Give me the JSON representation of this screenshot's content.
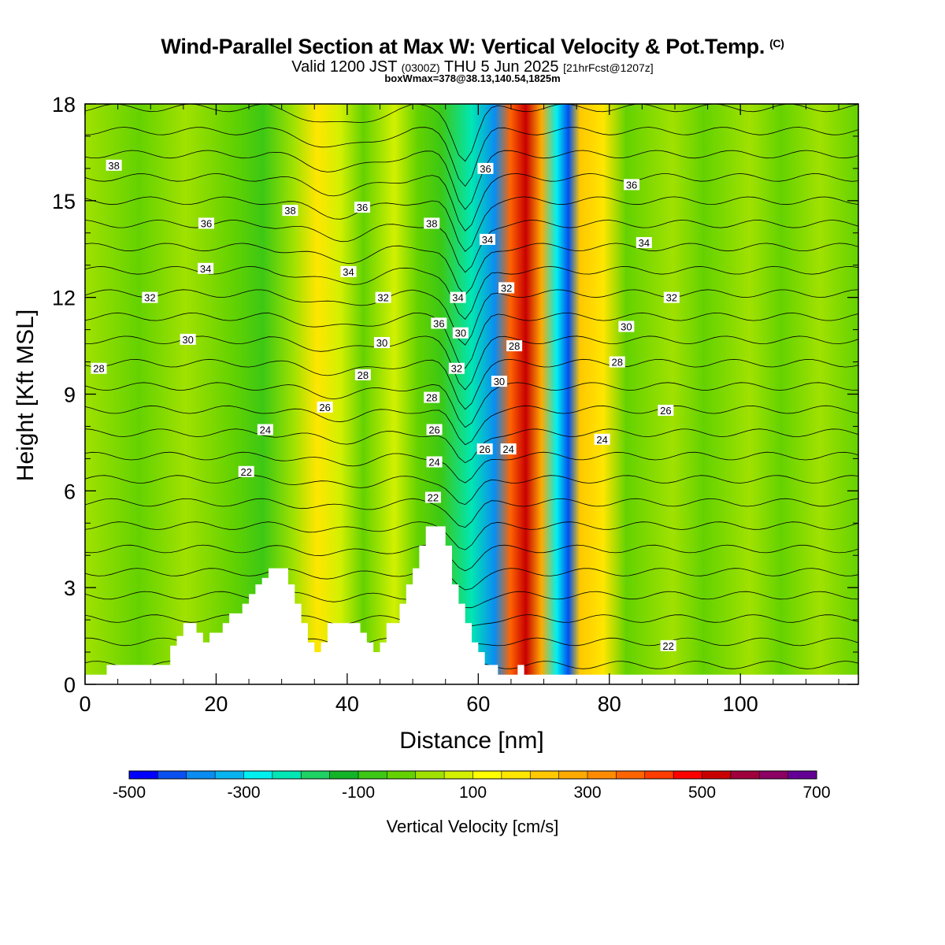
{
  "header": {
    "title": "Wind-Parallel Section at Max W: Vertical Velocity & Pot.Temp.",
    "title_mark": "(C)",
    "valid_line_a": "Valid 1200 JST",
    "valid_line_z": "(0300Z)",
    "valid_line_b": "THU 5 Jun 2025",
    "forecast": "[21hrFcst@1207z]",
    "box_line": "boxWmax=378@38.13,140.54,1825m"
  },
  "chart_data": {
    "type": "heatmap",
    "xlabel": "Distance [nm]",
    "ylabel": "Height [Kft MSL]",
    "xlim": [
      0,
      118
    ],
    "ylim": [
      0,
      18
    ],
    "x_ticks": [
      0,
      20,
      40,
      60,
      80,
      100
    ],
    "y_ticks": [
      0,
      3,
      6,
      9,
      12,
      15,
      18
    ],
    "colorbar": {
      "label": "Vertical Velocity [cm/s]",
      "min": -500,
      "max": 700,
      "step": 50,
      "tick_labels": [
        "-500",
        "-300",
        "-100",
        "100",
        "300",
        "500",
        "700"
      ],
      "colors": [
        "#0000ff",
        "#0a50f0",
        "#0a8cf0",
        "#08b4f0",
        "#00f0f0",
        "#00e6b4",
        "#1ed264",
        "#14b428",
        "#3cc814",
        "#64d200",
        "#a0e100",
        "#d2f000",
        "#ffff00",
        "#ffe600",
        "#ffc800",
        "#ffaa00",
        "#ff8c00",
        "#ff6400",
        "#ff3c00",
        "#ff0000",
        "#c80000",
        "#a0003c",
        "#8c0064",
        "#640096"
      ]
    },
    "contour_label": "Potential temperature (°C)",
    "contour_labels_shown": [
      {
        "x": 4.4,
        "y": 16.1,
        "v": "38"
      },
      {
        "x": 18.5,
        "y": 14.3,
        "v": "36"
      },
      {
        "x": 18.4,
        "y": 12.9,
        "v": "34"
      },
      {
        "x": 9.9,
        "y": 12.0,
        "v": "32"
      },
      {
        "x": 15.7,
        "y": 10.7,
        "v": "30"
      },
      {
        "x": 2.1,
        "y": 9.8,
        "v": "28"
      },
      {
        "x": 31.3,
        "y": 14.7,
        "v": "38"
      },
      {
        "x": 42.3,
        "y": 14.8,
        "v": "36"
      },
      {
        "x": 40.2,
        "y": 12.8,
        "v": "34"
      },
      {
        "x": 45.5,
        "y": 12.0,
        "v": "32"
      },
      {
        "x": 45.3,
        "y": 10.6,
        "v": "30"
      },
      {
        "x": 42.4,
        "y": 9.6,
        "v": "28"
      },
      {
        "x": 36.6,
        "y": 8.6,
        "v": "26"
      },
      {
        "x": 27.5,
        "y": 7.9,
        "v": "24"
      },
      {
        "x": 24.6,
        "y": 6.6,
        "v": "22"
      },
      {
        "x": 52.9,
        "y": 14.3,
        "v": "38"
      },
      {
        "x": 54.0,
        "y": 11.2,
        "v": "36"
      },
      {
        "x": 52.9,
        "y": 8.9,
        "v": "28"
      },
      {
        "x": 53.3,
        "y": 7.9,
        "v": "26"
      },
      {
        "x": 53.3,
        "y": 6.9,
        "v": "24"
      },
      {
        "x": 53.1,
        "y": 5.8,
        "v": "22"
      },
      {
        "x": 56.9,
        "y": 12.0,
        "v": "34"
      },
      {
        "x": 57.3,
        "y": 10.9,
        "v": "30"
      },
      {
        "x": 56.7,
        "y": 9.8,
        "v": "32"
      },
      {
        "x": 61.1,
        "y": 16.0,
        "v": "36"
      },
      {
        "x": 61.4,
        "y": 13.8,
        "v": "34"
      },
      {
        "x": 64.3,
        "y": 12.3,
        "v": "32"
      },
      {
        "x": 65.5,
        "y": 10.5,
        "v": "28"
      },
      {
        "x": 63.2,
        "y": 9.4,
        "v": "30"
      },
      {
        "x": 61.0,
        "y": 7.3,
        "v": "26"
      },
      {
        "x": 64.6,
        "y": 7.3,
        "v": "24"
      },
      {
        "x": 83.4,
        "y": 15.5,
        "v": "36"
      },
      {
        "x": 85.3,
        "y": 13.7,
        "v": "34"
      },
      {
        "x": 89.5,
        "y": 12.0,
        "v": "32"
      },
      {
        "x": 82.6,
        "y": 11.1,
        "v": "30"
      },
      {
        "x": 81.2,
        "y": 10.0,
        "v": "28"
      },
      {
        "x": 88.6,
        "y": 8.5,
        "v": "26"
      },
      {
        "x": 78.9,
        "y": 7.6,
        "v": "24"
      },
      {
        "x": 89.0,
        "y": 1.2,
        "v": "22"
      }
    ],
    "terrain_kft": [
      [
        0,
        0.3
      ],
      [
        3.3,
        0.3
      ],
      [
        3.3,
        0.6
      ],
      [
        13,
        0.6
      ],
      [
        13,
        1.2
      ],
      [
        14,
        1.2
      ],
      [
        14,
        1.5
      ],
      [
        15,
        1.5
      ],
      [
        15,
        1.9
      ],
      [
        17,
        1.9
      ],
      [
        17,
        1.6
      ],
      [
        18,
        1.6
      ],
      [
        18,
        1.3
      ],
      [
        19,
        1.3
      ],
      [
        19,
        1.6
      ],
      [
        21,
        1.6
      ],
      [
        21,
        1.9
      ],
      [
        22,
        1.9
      ],
      [
        22,
        2.2
      ],
      [
        24,
        2.2
      ],
      [
        24,
        2.5
      ],
      [
        25,
        2.5
      ],
      [
        25,
        2.8
      ],
      [
        26,
        2.8
      ],
      [
        26,
        3.1
      ],
      [
        27,
        3.1
      ],
      [
        27,
        3.3
      ],
      [
        28,
        3.3
      ],
      [
        28,
        3.6
      ],
      [
        31,
        3.6
      ],
      [
        31,
        3.1
      ],
      [
        32,
        3.1
      ],
      [
        32,
        2.5
      ],
      [
        33,
        2.5
      ],
      [
        33,
        1.9
      ],
      [
        34,
        1.9
      ],
      [
        34,
        1.3
      ],
      [
        35,
        1.3
      ],
      [
        35,
        1.0
      ],
      [
        36,
        1.0
      ],
      [
        36,
        1.3
      ],
      [
        37,
        1.3
      ],
      [
        37,
        1.9
      ],
      [
        42,
        1.9
      ],
      [
        42,
        1.6
      ],
      [
        43,
        1.6
      ],
      [
        43,
        1.3
      ],
      [
        44,
        1.3
      ],
      [
        44,
        1.0
      ],
      [
        45,
        1.0
      ],
      [
        45,
        1.3
      ],
      [
        46,
        1.3
      ],
      [
        46,
        1.9
      ],
      [
        48,
        1.9
      ],
      [
        48,
        2.5
      ],
      [
        49,
        2.5
      ],
      [
        49,
        3.1
      ],
      [
        50,
        3.1
      ],
      [
        50,
        3.6
      ],
      [
        51,
        3.6
      ],
      [
        51,
        4.3
      ],
      [
        52,
        4.3
      ],
      [
        52,
        4.9
      ],
      [
        55,
        4.9
      ],
      [
        55,
        4.3
      ],
      [
        56,
        4.3
      ],
      [
        56,
        3.1
      ],
      [
        57,
        3.1
      ],
      [
        57,
        2.5
      ],
      [
        58,
        2.5
      ],
      [
        58,
        1.9
      ],
      [
        59,
        1.9
      ],
      [
        59,
        1.3
      ],
      [
        60,
        1.3
      ],
      [
        60,
        1.0
      ],
      [
        61,
        1.0
      ],
      [
        61,
        0.6
      ],
      [
        63,
        0.6
      ],
      [
        63,
        0.3
      ],
      [
        66,
        0.3
      ],
      [
        66,
        0.6
      ],
      [
        67,
        0.6
      ],
      [
        67,
        0.3
      ],
      [
        118,
        0.3
      ]
    ]
  }
}
